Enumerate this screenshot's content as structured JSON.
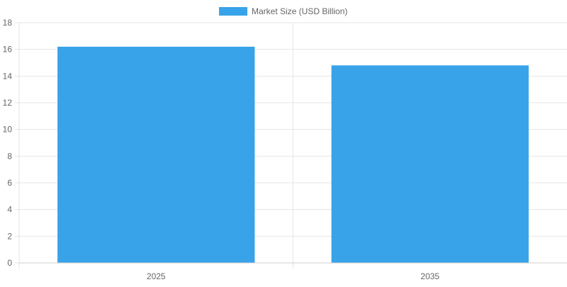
{
  "chart_data": {
    "type": "bar",
    "categories": [
      "2025",
      "2035"
    ],
    "series": [
      {
        "name": "Market Size (USD Billion)",
        "values": [
          16.2,
          14.8
        ],
        "color": "#38a3e8"
      }
    ],
    "ylim": [
      0,
      18
    ],
    "yticks": [
      0,
      2,
      4,
      6,
      8,
      10,
      12,
      14,
      16,
      18
    ],
    "grid": true,
    "legend_position": "top-center"
  }
}
